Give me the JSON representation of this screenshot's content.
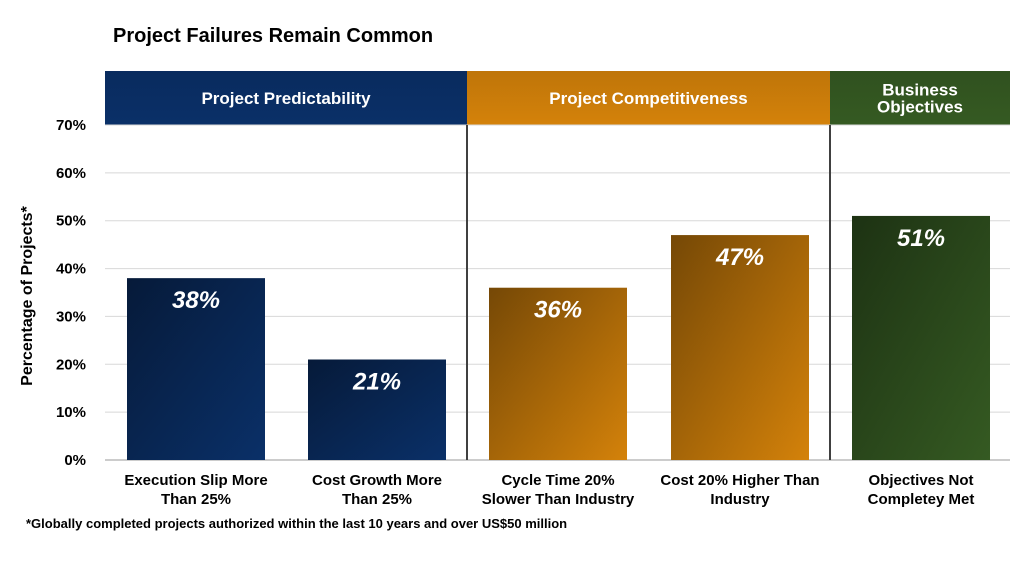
{
  "chart_data": {
    "type": "bar",
    "title": "Project Failures Remain Common",
    "ylabel": "Percentage of Projects*",
    "xlabel": "",
    "ylim": [
      0,
      70
    ],
    "yticks": [
      "0%",
      "10%",
      "20%",
      "30%",
      "40%",
      "50%",
      "60%",
      "70%"
    ],
    "ytick_values": [
      0,
      10,
      20,
      30,
      40,
      50,
      60,
      70
    ],
    "grid": true,
    "footnote": "*Globally completed projects authorized within the last 10 years and over US$50 million",
    "groups": [
      {
        "label": "Project Predictability",
        "label_lines": [
          "Project Predictability"
        ],
        "color": "#0a3068"
      },
      {
        "label": "Project Competitiveness",
        "label_lines": [
          "Project Competitiveness"
        ],
        "color": "#d4820a"
      },
      {
        "label": "Business Objectives",
        "label_lines": [
          "Business",
          "Objectives"
        ],
        "color": "#355a22"
      }
    ],
    "categories": [
      {
        "label": "Execution Slip More Than 25%",
        "lines": [
          "Execution Slip More",
          "Than 25%"
        ],
        "group": 0
      },
      {
        "label": "Cost Growth More Than 25%",
        "lines": [
          "Cost Growth More",
          "Than 25%"
        ],
        "group": 0
      },
      {
        "label": "Cycle Time 20% Slower Than Industry",
        "lines": [
          "Cycle Time 20%",
          "Slower Than Industry"
        ],
        "group": 1
      },
      {
        "label": "Cost 20% Higher Than Industry",
        "lines": [
          "Cost 20% Higher Than",
          "Industry"
        ],
        "group": 1
      },
      {
        "label": "Objectives Not Completey Met",
        "lines": [
          "Objectives Not",
          "Completey Met"
        ],
        "group": 2
      }
    ],
    "values": [
      38,
      21,
      36,
      47,
      51
    ],
    "value_labels": [
      "38%",
      "21%",
      "36%",
      "47%",
      "51%"
    ]
  }
}
